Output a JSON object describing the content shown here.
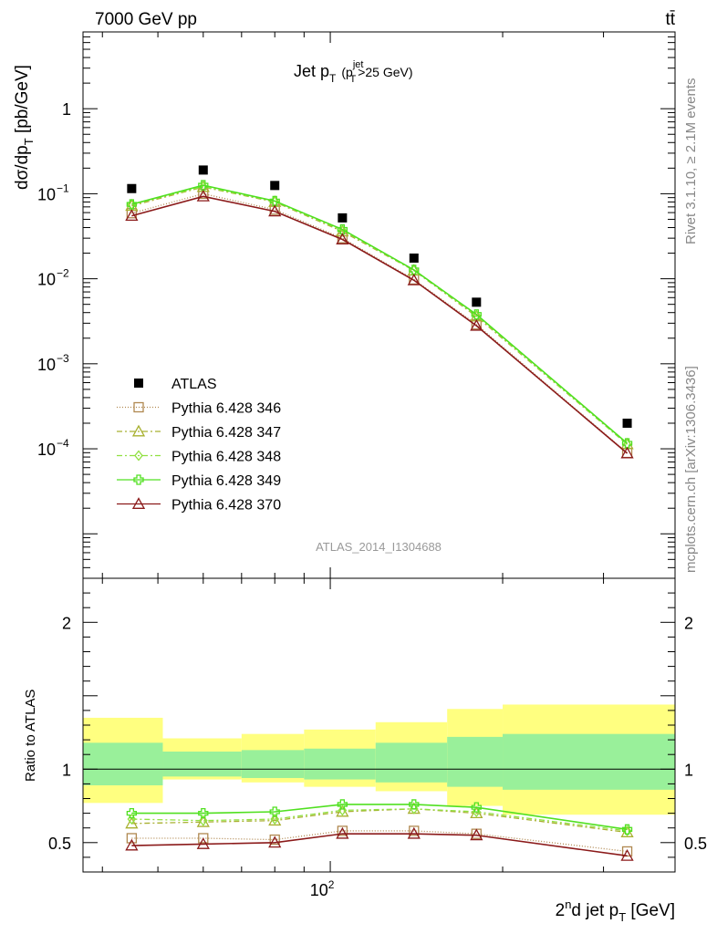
{
  "header": {
    "energy_label": "7000 GeV pp",
    "process_label": "tt̄"
  },
  "side_text": {
    "rivet": "Rivet 3.1.10, ≥ 2.1M events",
    "mcplots": "mcplots.cern.ch [arXiv:1306.3436]"
  },
  "chart_data": [
    {
      "type": "line",
      "panel": "main",
      "title": "Jet p_T (p_T^jet>25 GeV)",
      "title_parts": {
        "main": "Jet p",
        "sub": "T",
        "paren_open": "(p",
        "paren_sup": "jet",
        "paren_sub": "T",
        "paren_rest": ">25 GeV)"
      },
      "ylabel": "dσ/dp_T [pb/GeV]",
      "ylabel_parts": {
        "main": "dσ/dp",
        "sub": "T",
        "unit": " [pb/GeV]"
      },
      "yscale": "log",
      "ylim": [
        3e-06,
        8
      ],
      "yticks": [
        {
          "value": 1,
          "label": "1"
        },
        {
          "value": 0.1,
          "label": "10",
          "exp": "−1"
        },
        {
          "value": 0.01,
          "label": "10",
          "exp": "−2"
        },
        {
          "value": 0.001,
          "label": "10",
          "exp": "−3"
        },
        {
          "value": 0.0001,
          "label": "10",
          "exp": "−4"
        }
      ],
      "xscale": "log",
      "xlim": [
        37,
        400
      ],
      "watermark": "ATLAS_2014_I1304688",
      "legend_position": "bottom-left",
      "data_series": {
        "name": "ATLAS",
        "x": [
          45,
          60,
          80,
          105,
          140,
          180,
          330
        ],
        "y": [
          0.115,
          0.19,
          0.125,
          0.052,
          0.0175,
          0.0053,
          0.0002
        ]
      },
      "series": [
        {
          "name": "Pythia 6.428 346",
          "color": "#b08850",
          "marker": "square-open",
          "dash": "1,2",
          "x": [
            45,
            60,
            80,
            105,
            140,
            180,
            330
          ],
          "y": [
            0.059,
            0.1,
            0.065,
            0.03,
            0.0098,
            0.0029,
            8.95e-05
          ]
        },
        {
          "name": "Pythia 6.428 347",
          "color": "#a8b030",
          "marker": "triangle-open",
          "dash": "6,3,2,3",
          "x": [
            45,
            60,
            80,
            105,
            140,
            180,
            330
          ],
          "y": [
            0.072,
            0.12,
            0.08,
            0.036,
            0.0125,
            0.0036,
            0.000113
          ]
        },
        {
          "name": "Pythia 6.428 348",
          "color": "#90e040",
          "marker": "diamond-open",
          "dash": "6,3,2,3",
          "x": [
            45,
            60,
            80,
            105,
            140,
            180,
            330
          ],
          "y": [
            0.075,
            0.121,
            0.081,
            0.037,
            0.0126,
            0.0037,
            0.000113
          ]
        },
        {
          "name": "Pythia 6.428 349",
          "color": "#50e020",
          "marker": "cross-open",
          "dash": "",
          "x": [
            45,
            60,
            80,
            105,
            140,
            180,
            330
          ],
          "y": [
            0.075,
            0.126,
            0.082,
            0.038,
            0.0127,
            0.0038,
            0.000116
          ]
        },
        {
          "name": "Pythia 6.428 370",
          "color": "#8b1a1a",
          "marker": "triangle-open",
          "dash": "",
          "x": [
            45,
            60,
            80,
            105,
            140,
            180,
            330
          ],
          "y": [
            0.055,
            0.093,
            0.062,
            0.029,
            0.0096,
            0.0028,
            8.85e-05
          ]
        }
      ]
    },
    {
      "type": "line",
      "panel": "ratio",
      "ylabel": "Ratio to ATLAS",
      "ylim": [
        0.3,
        2.3
      ],
      "yticks": [
        {
          "value": 0.5,
          "label": "0.5"
        },
        {
          "value": 1,
          "label": "1"
        },
        {
          "value": 2,
          "label": "2"
        }
      ],
      "xlabel": "2nd jet p_T [GeV]",
      "xlabel_parts": {
        "a": "2",
        "sup": "n",
        "b": "d jet p",
        "sub": "T",
        "unit": " [GeV]"
      },
      "xscale": "log",
      "xlim": [
        37,
        400
      ],
      "xticks": [
        {
          "value": 100,
          "label": "10",
          "exp": "2"
        }
      ],
      "bands": [
        {
          "xlo": 37,
          "xhi": 51,
          "yellow": [
            0.77,
            1.35
          ],
          "green": [
            0.89,
            1.18
          ]
        },
        {
          "xlo": 51,
          "xhi": 70,
          "yellow": [
            0.93,
            1.21
          ],
          "green": [
            0.95,
            1.12
          ]
        },
        {
          "xlo": 70,
          "xhi": 90,
          "yellow": [
            0.91,
            1.24
          ],
          "green": [
            0.94,
            1.13
          ]
        },
        {
          "xlo": 90,
          "xhi": 120,
          "yellow": [
            0.88,
            1.27
          ],
          "green": [
            0.93,
            1.14
          ]
        },
        {
          "xlo": 120,
          "xhi": 160,
          "yellow": [
            0.85,
            1.32
          ],
          "green": [
            0.91,
            1.18
          ]
        },
        {
          "xlo": 160,
          "xhi": 200,
          "yellow": [
            0.75,
            1.41
          ],
          "green": [
            0.88,
            1.22
          ]
        },
        {
          "xlo": 200,
          "xhi": 400,
          "yellow": [
            0.69,
            1.44
          ],
          "green": [
            0.86,
            1.24
          ]
        }
      ],
      "series": [
        {
          "name": "Pythia 6.428 346",
          "x": [
            45,
            60,
            80,
            105,
            140,
            180,
            330
          ],
          "y": [
            0.53,
            0.53,
            0.52,
            0.58,
            0.58,
            0.56,
            0.44
          ]
        },
        {
          "name": "Pythia 6.428 347",
          "x": [
            45,
            60,
            80,
            105,
            140,
            180,
            330
          ],
          "y": [
            0.63,
            0.64,
            0.65,
            0.71,
            0.73,
            0.7,
            0.57
          ]
        },
        {
          "name": "Pythia 6.428 348",
          "x": [
            45,
            60,
            80,
            105,
            140,
            180,
            330
          ],
          "y": [
            0.66,
            0.65,
            0.66,
            0.72,
            0.73,
            0.71,
            0.58
          ]
        },
        {
          "name": "Pythia 6.428 349",
          "x": [
            45,
            60,
            80,
            105,
            140,
            180,
            330
          ],
          "y": [
            0.7,
            0.7,
            0.71,
            0.76,
            0.76,
            0.74,
            0.59
          ]
        },
        {
          "name": "Pythia 6.428 370",
          "x": [
            45,
            60,
            80,
            105,
            140,
            180,
            330
          ],
          "y": [
            0.48,
            0.49,
            0.5,
            0.56,
            0.56,
            0.55,
            0.41
          ]
        }
      ]
    }
  ]
}
